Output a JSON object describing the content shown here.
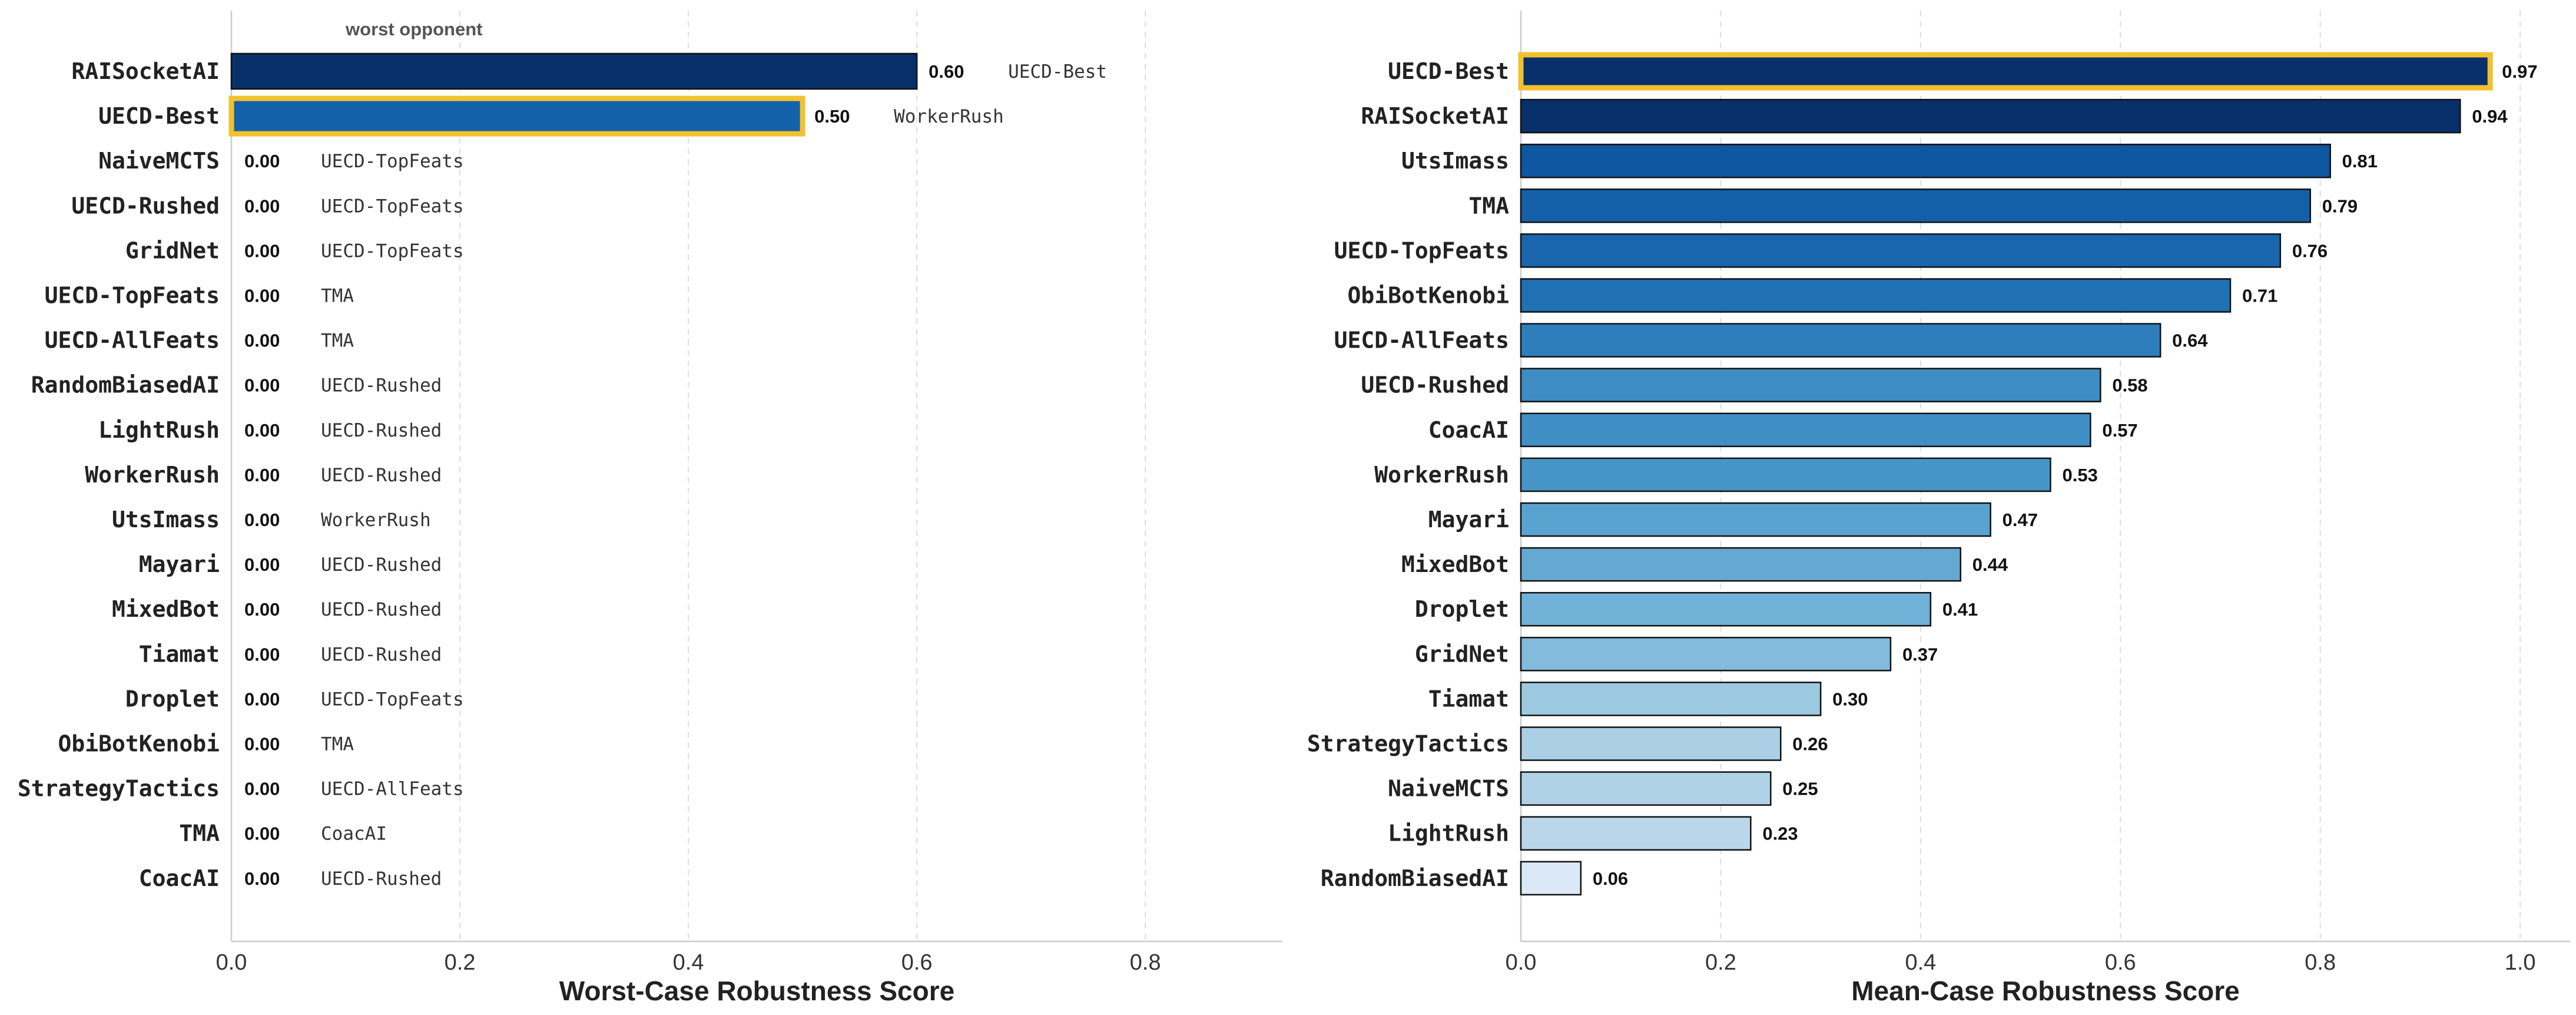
{
  "chart_data": [
    {
      "type": "bar",
      "orientation": "horizontal",
      "xlabel": "Worst-Case Robustness Score",
      "xlim": [
        0,
        0.92
      ],
      "xticks": [
        "0.0",
        "0.2",
        "0.4",
        "0.6",
        "0.8"
      ],
      "grid": true,
      "annotation_header": "worst opponent",
      "highlight": "UECD-Best",
      "highlight_color": "#f2c12e",
      "categories": [
        "RAISocketAI",
        "UECD-Best",
        "NaiveMCTS",
        "UECD-Rushed",
        "GridNet",
        "UECD-TopFeats",
        "UECD-AllFeats",
        "RandomBiasedAI",
        "LightRush",
        "WorkerRush",
        "UtsImass",
        "Mayari",
        "MixedBot",
        "Tiamat",
        "Droplet",
        "ObiBotKenobi",
        "StrategyTactics",
        "TMA",
        "CoacAI"
      ],
      "values": [
        0.6,
        0.5,
        0,
        0,
        0,
        0,
        0,
        0,
        0,
        0,
        0,
        0,
        0,
        0,
        0,
        0,
        0,
        0,
        0
      ],
      "value_labels": [
        "0.60",
        "0.50",
        "0.00",
        "0.00",
        "0.00",
        "0.00",
        "0.00",
        "0.00",
        "0.00",
        "0.00",
        "0.00",
        "0.00",
        "0.00",
        "0.00",
        "0.00",
        "0.00",
        "0.00",
        "0.00",
        "0.00"
      ],
      "opponents": [
        "UECD-Best",
        "WorkerRush",
        "UECD-TopFeats",
        "UECD-TopFeats",
        "UECD-TopFeats",
        "TMA",
        "TMA",
        "UECD-Rushed",
        "UECD-Rushed",
        "UECD-Rushed",
        "WorkerRush",
        "UECD-Rushed",
        "UECD-Rushed",
        "UECD-Rushed",
        "UECD-TopFeats",
        "TMA",
        "UECD-AllFeats",
        "CoacAI",
        "UECD-Rushed"
      ],
      "bar_colors": [
        "#08306b",
        "#1361a9"
      ]
    },
    {
      "type": "bar",
      "orientation": "horizontal",
      "xlabel": "Mean-Case Robustness Score",
      "xlim": [
        0,
        1.05
      ],
      "xticks": [
        "0.0",
        "0.2",
        "0.4",
        "0.6",
        "0.8",
        "1.0"
      ],
      "grid": true,
      "highlight": "UECD-Best",
      "highlight_color": "#f2c12e",
      "categories": [
        "UECD-Best",
        "RAISocketAI",
        "UtsImass",
        "TMA",
        "UECD-TopFeats",
        "ObiBotKenobi",
        "UECD-AllFeats",
        "UECD-Rushed",
        "CoacAI",
        "WorkerRush",
        "Mayari",
        "MixedBot",
        "Droplet",
        "GridNet",
        "Tiamat",
        "StrategyTactics",
        "NaiveMCTS",
        "LightRush",
        "RandomBiasedAI"
      ],
      "values": [
        0.97,
        0.94,
        0.81,
        0.79,
        0.76,
        0.71,
        0.64,
        0.58,
        0.57,
        0.53,
        0.47,
        0.44,
        0.41,
        0.37,
        0.3,
        0.26,
        0.25,
        0.23,
        0.06
      ],
      "value_labels": [
        "0.97",
        "0.94",
        "0.81",
        "0.79",
        "0.76",
        "0.71",
        "0.64",
        "0.58",
        "0.57",
        "0.53",
        "0.47",
        "0.44",
        "0.41",
        "0.37",
        "0.30",
        "0.26",
        "0.25",
        "0.23",
        "0.06"
      ],
      "bar_colors": [
        "#08306b",
        "#08306b",
        "#0f57a1",
        "#1460a8",
        "#1966ad",
        "#2070b4",
        "#2f7ebc",
        "#3d8dc4",
        "#3f8fc5",
        "#4695c8",
        "#5aa2cf",
        "#65a9d3",
        "#71b1d7",
        "#82bbdb",
        "#9ecae1",
        "#abd0e6",
        "#b0d2e7",
        "#bad6eb",
        "#dbe9f6"
      ]
    }
  ]
}
